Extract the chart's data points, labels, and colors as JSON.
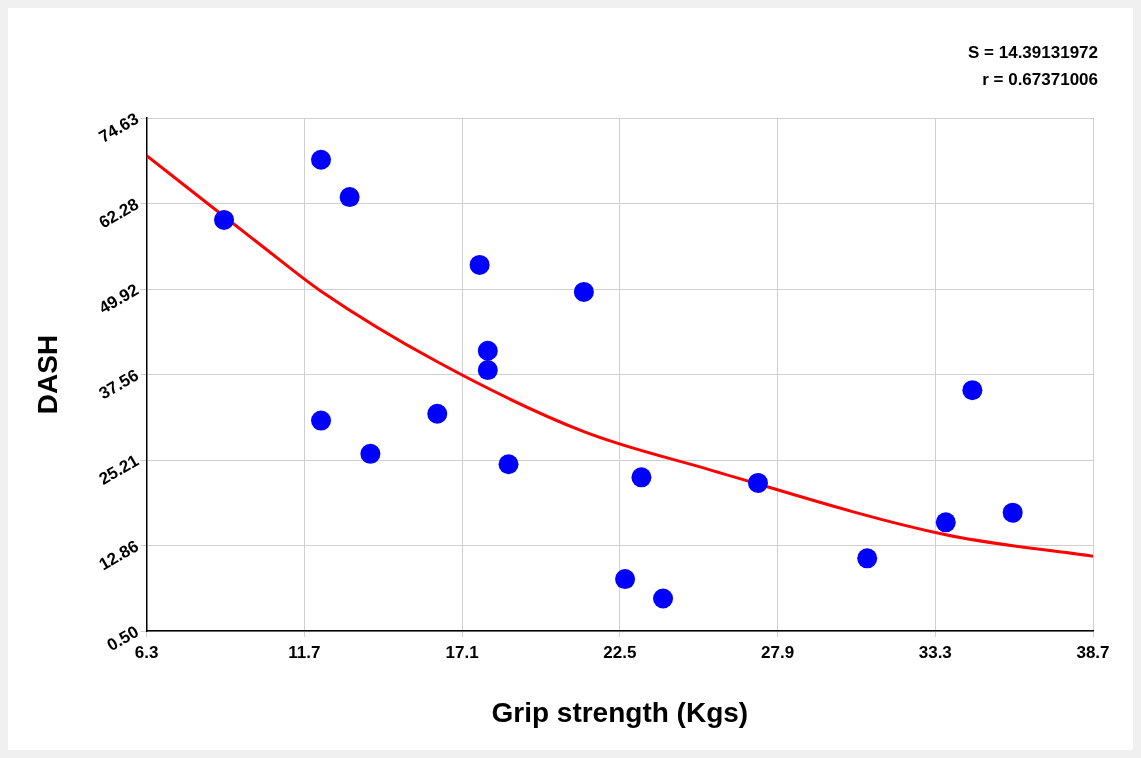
{
  "chart_data": {
    "type": "scatter",
    "xlabel": "Grip strength (Kgs)",
    "ylabel": "DASH",
    "annotations": [
      "S = 14.39131972",
      "r = 0.67371006"
    ],
    "series": [
      {
        "color": "#0000ff",
        "marker": "circle",
        "x": [
          8.95,
          12.27,
          13.25,
          12.27,
          13.96,
          16.25,
          17.7,
          17.98,
          17.98,
          18.69,
          21.27,
          22.68,
          23.24,
          23.98,
          27.23,
          30.97,
          33.66,
          34.57,
          35.95
        ],
        "values": [
          59.9,
          68.6,
          63.2,
          30.9,
          26.1,
          31.9,
          53.4,
          41.0,
          38.2,
          24.6,
          49.5,
          8.0,
          22.7,
          5.2,
          21.9,
          11.0,
          16.2,
          35.3,
          17.6
        ]
      },
      {
        "type": "line",
        "color": "#ff0000",
        "marker": "none",
        "line_style": "solid",
        "x": [
          6.3,
          10.5,
          12.27,
          16.25,
          21.27,
          25.5,
          33.66,
          38.7
        ],
        "values": [
          69.2,
          55.3,
          49.6,
          39.4,
          29.3,
          23.9,
          14.4,
          11.3
        ]
      }
    ],
    "xlim": [
      6.3,
      38.7
    ],
    "xticks": [
      6.3,
      11.7,
      17.1,
      22.5,
      27.9,
      33.3,
      38.7
    ],
    "ylim": [
      0.5,
      74.63
    ],
    "yticks": [
      {
        "value": 0.5,
        "label": "0.50"
      },
      12.86,
      25.21,
      37.56,
      49.92,
      62.28,
      74.63
    ],
    "grid": true,
    "legend": false
  }
}
